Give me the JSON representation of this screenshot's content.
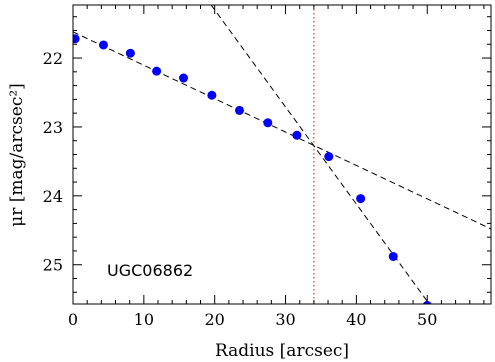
{
  "chart_data": {
    "type": "scatter",
    "xlabel": "Radius [arcsec]",
    "ylabel": "μr [mag/arcsec²]",
    "xlim": [
      0,
      59
    ],
    "ylim": [
      25.57,
      21.23
    ],
    "y_inverted": true,
    "x_ticks": [
      "0",
      "10",
      "20",
      "30",
      "40",
      "50"
    ],
    "y_ticks": [
      "22",
      "23",
      "24",
      "25"
    ],
    "annotation": "UGC06862",
    "series": [
      {
        "marker": "filled-circle",
        "color": "#0000ff",
        "x": [
          0.3,
          4.3,
          8.1,
          11.8,
          15.6,
          19.6,
          23.5,
          27.5,
          31.6,
          36.1,
          40.6,
          45.2,
          50.0
        ],
        "y": [
          21.72,
          21.81,
          21.93,
          22.19,
          22.29,
          22.54,
          22.76,
          22.94,
          23.12,
          23.43,
          24.04,
          24.88,
          25.59
        ]
      }
    ],
    "fit_lines": [
      {
        "style": "dashed",
        "color": "#000000",
        "x": [
          0.0,
          59.0
        ],
        "y": [
          21.62,
          24.48
        ]
      },
      {
        "style": "dashed",
        "color": "#000000",
        "x": [
          19.5,
          50.5
        ],
        "y": [
          21.23,
          25.6
        ]
      }
    ],
    "break_radius": {
      "x": 34.0,
      "style": "dotted",
      "color": "#ff0000"
    }
  }
}
